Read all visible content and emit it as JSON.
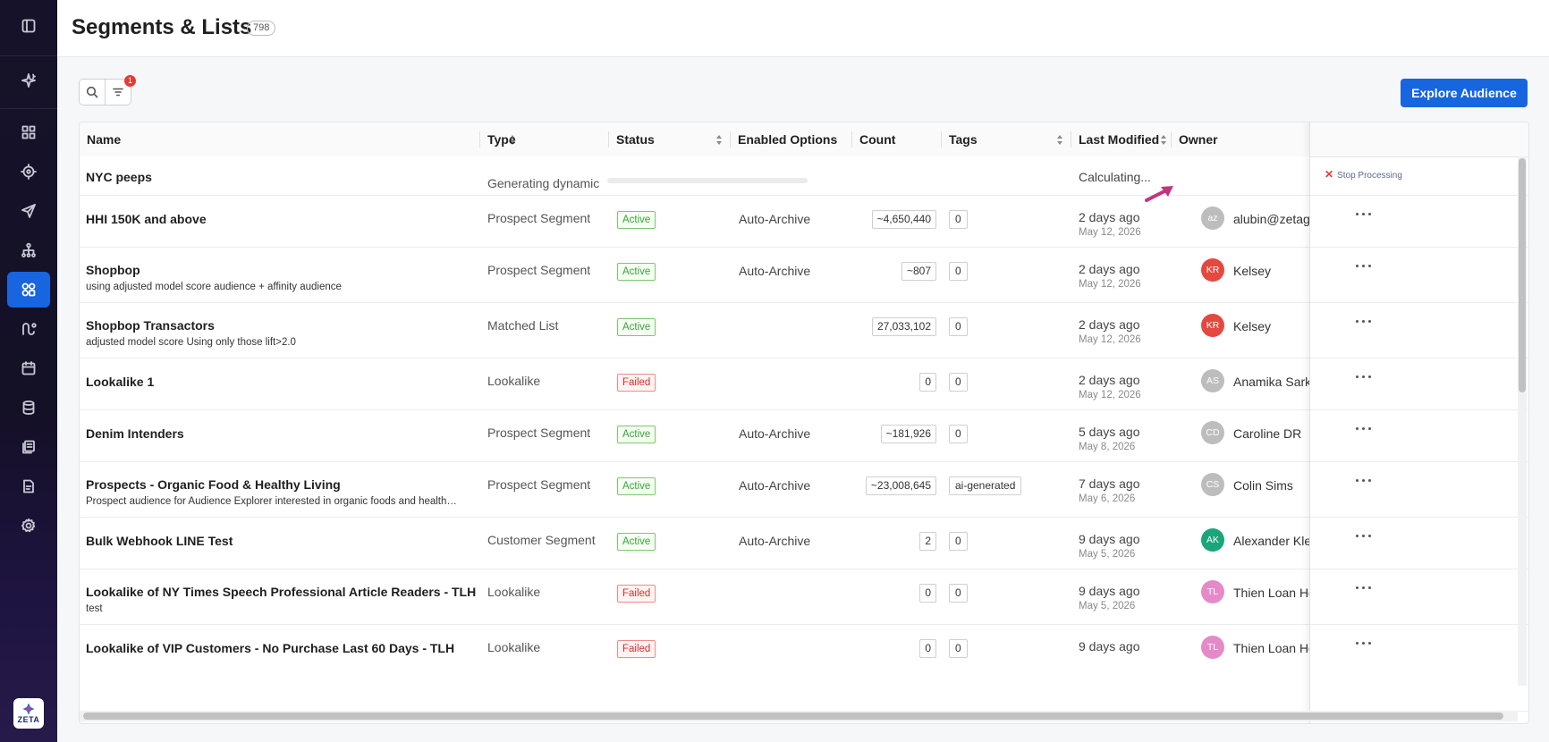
{
  "page": {
    "title": "Segments & Lists",
    "count": "798"
  },
  "toolbar": {
    "filter_badge": "1",
    "explore_label": "Explore Audience"
  },
  "columns": {
    "name": "Name",
    "type": "Type",
    "status": "Status",
    "options": "Enabled Options",
    "count": "Count",
    "tags": "Tags",
    "modified": "Last Modified",
    "owner": "Owner"
  },
  "processing_row": {
    "name": "NYC peeps",
    "type": "Generating dynamic",
    "modified": "Calculating...",
    "stop_label": "Stop Processing"
  },
  "rows": [
    {
      "name": "HHI 150K and above",
      "desc": "",
      "type": "Prospect Segment",
      "status": "Active",
      "status_kind": "active",
      "options": "Auto-Archive",
      "count": "~4,650,440",
      "tag": "0",
      "modified": "2 days ago",
      "modified_date": "May 12, 2026",
      "owner_initials": "az",
      "owner_name": "alubin@zetaglobal.com",
      "owner_color": "#bdbdbd"
    },
    {
      "name": "Shopbop",
      "desc": "using adjusted model score audience + affinity audience",
      "type": "Prospect Segment",
      "status": "Active",
      "status_kind": "active",
      "options": "Auto-Archive",
      "count": "~807",
      "tag": "0",
      "modified": "2 days ago",
      "modified_date": "May 12, 2026",
      "owner_initials": "KR",
      "owner_name": "Kelsey",
      "owner_color": "#e5483f"
    },
    {
      "name": "Shopbop Transactors",
      "desc": "adjusted model score Using only those lift>2.0",
      "type": "Matched List",
      "status": "Active",
      "status_kind": "active",
      "options": "",
      "count": "27,033,102",
      "tag": "0",
      "modified": "2 days ago",
      "modified_date": "May 12, 2026",
      "owner_initials": "KR",
      "owner_name": "Kelsey",
      "owner_color": "#e5483f"
    },
    {
      "name": "Lookalike 1",
      "desc": "",
      "type": "Lookalike",
      "status": "Failed",
      "status_kind": "failed",
      "options": "",
      "count": "0",
      "tag": "0",
      "modified": "2 days ago",
      "modified_date": "May 12, 2026",
      "owner_initials": "AS",
      "owner_name": "Anamika Sarkar",
      "owner_color": "#bdbdbd"
    },
    {
      "name": "Denim Intenders",
      "desc": "",
      "type": "Prospect Segment",
      "status": "Active",
      "status_kind": "active",
      "options": "Auto-Archive",
      "count": "~181,926",
      "tag": "0",
      "modified": "5 days ago",
      "modified_date": "May 8, 2026",
      "owner_initials": "CD",
      "owner_name": "Caroline DR",
      "owner_color": "#bdbdbd"
    },
    {
      "name": "Prospects - Organic Food & Healthy Living",
      "desc": "Prospect audience for Audience Explorer interested in organic foods and healthy living",
      "type": "Prospect Segment",
      "status": "Active",
      "status_kind": "active",
      "options": "Auto-Archive",
      "count": "~23,008,645",
      "tag": "ai-generated",
      "modified": "7 days ago",
      "modified_date": "May 6, 2026",
      "owner_initials": "CS",
      "owner_name": "Colin Sims",
      "owner_color": "#bdbdbd"
    },
    {
      "name": "Bulk Webhook LINE Test",
      "desc": "",
      "type": "Customer Segment",
      "status": "Active",
      "status_kind": "active",
      "options": "Auto-Archive",
      "count": "2",
      "tag": "0",
      "modified": "9 days ago",
      "modified_date": "May 5, 2026",
      "owner_initials": "AK",
      "owner_name": "Alexander Klein",
      "owner_color": "#1aa57a"
    },
    {
      "name": "Lookalike of NY Times Speech Professional Article Readers - TLH",
      "desc": "test",
      "type": "Lookalike",
      "status": "Failed",
      "status_kind": "failed",
      "options": "",
      "count": "0",
      "tag": "0",
      "modified": "9 days ago",
      "modified_date": "May 5, 2026",
      "owner_initials": "TL",
      "owner_name": "Thien Loan Ho",
      "owner_color": "#e58ac9"
    },
    {
      "name": "Lookalike of VIP Customers - No Purchase Last 60 Days - TLH",
      "desc": "",
      "type": "Lookalike",
      "status": "Failed",
      "status_kind": "failed",
      "options": "",
      "count": "0",
      "tag": "0",
      "modified": "9 days ago",
      "modified_date": "",
      "owner_initials": "TL",
      "owner_name": "Thien Loan Ho",
      "owner_color": "#e58ac9"
    }
  ],
  "icons": {
    "sidebar": [
      "panel-toggle-icon",
      "sparkle-icon",
      "dashboard-icon",
      "target-icon",
      "send-icon",
      "hierarchy-icon",
      "audience-icon",
      "journey-icon",
      "calendar-icon",
      "database-icon",
      "library-icon",
      "report-icon",
      "settings-icon"
    ],
    "logo": "zeta-logo"
  },
  "colors": {
    "accent": "#1865e0",
    "active_green": "#3aa13a",
    "failed_red": "#d32f2f",
    "badge_red": "#e53935"
  }
}
